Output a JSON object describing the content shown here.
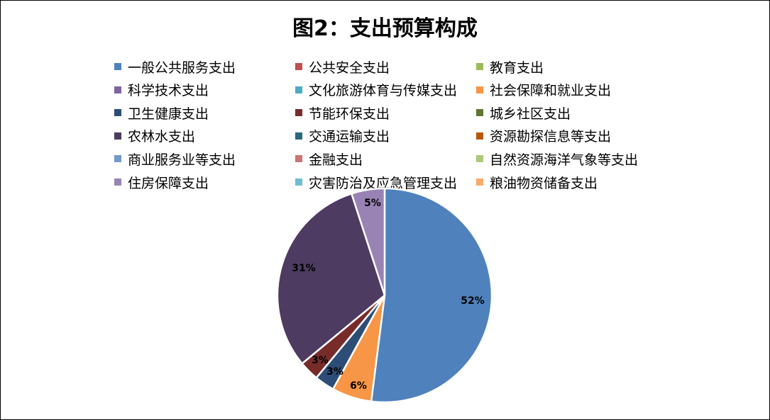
{
  "chart_data": {
    "type": "pie",
    "title": "图2：支出预算构成",
    "legend_position": "top",
    "legend_entries": [
      {
        "label": "一般公共服务支出",
        "color": "#4F81BD"
      },
      {
        "label": "公共安全支出",
        "color": "#C0504D"
      },
      {
        "label": "教育支出",
        "color": "#9BBB59"
      },
      {
        "label": "科学技术支出",
        "color": "#8064A2"
      },
      {
        "label": "文化旅游体育与传媒支出",
        "color": "#4BACC6"
      },
      {
        "label": "社会保障和就业支出",
        "color": "#F79646"
      },
      {
        "label": "卫生健康支出",
        "color": "#2C4D75"
      },
      {
        "label": "节能环保支出",
        "color": "#772C2A"
      },
      {
        "label": "城乡社区支出",
        "color": "#5F7530"
      },
      {
        "label": "农林水支出",
        "color": "#4D3B62"
      },
      {
        "label": "交通运输支出",
        "color": "#276A7C"
      },
      {
        "label": "资源勘探信息等支出",
        "color": "#B65708"
      },
      {
        "label": "商业服务业等支出",
        "color": "#729ACA"
      },
      {
        "label": "金融支出",
        "color": "#CD7371"
      },
      {
        "label": "自然资源海洋气象等支出",
        "color": "#AFC97A"
      },
      {
        "label": "住房保障支出",
        "color": "#9983B5"
      },
      {
        "label": "灾害防治及应急管理支出",
        "color": "#6FBDD1"
      },
      {
        "label": "粮油物资储备支出",
        "color": "#F9AB6B"
      }
    ],
    "slices": [
      {
        "label": "一般公共服务支出",
        "value": 52,
        "display": "52%",
        "color": "#4F81BD"
      },
      {
        "label": "社会保障和就业支出",
        "value": 6,
        "display": "6%",
        "color": "#F79646"
      },
      {
        "label": "卫生健康支出",
        "value": 3,
        "display": "3%",
        "color": "#2C4D75"
      },
      {
        "label": "节能环保支出",
        "value": 3,
        "display": "3%",
        "color": "#772C2A"
      },
      {
        "label": "农林水支出",
        "value": 31,
        "display": "31%",
        "color": "#4D3B62"
      },
      {
        "label": "住房保障支出",
        "value": 5,
        "display": "5%",
        "color": "#9983B5"
      }
    ]
  }
}
